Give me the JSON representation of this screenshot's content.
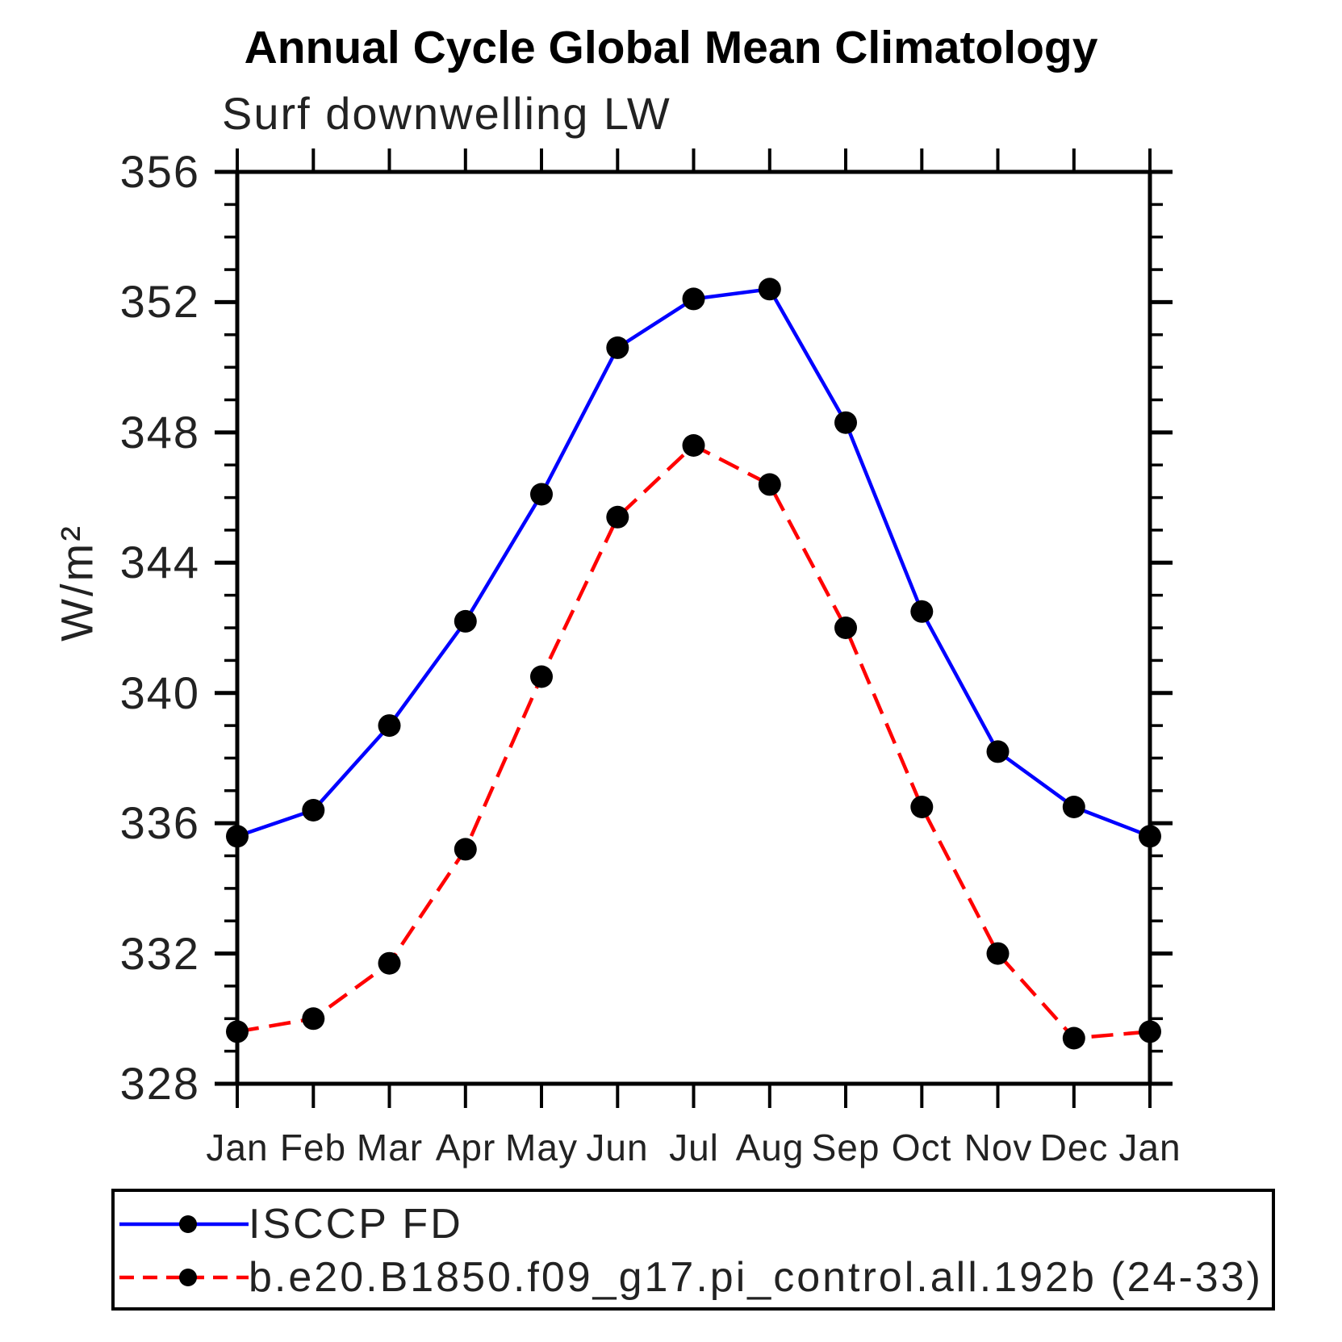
{
  "chart_data": {
    "type": "line",
    "title": "Annual Cycle Global Mean Climatology",
    "subtitle": "Surf downwelling LW",
    "xlabel": "",
    "ylabel": "W/m²",
    "categories": [
      "Jan",
      "Feb",
      "Mar",
      "Apr",
      "May",
      "Jun",
      "Jul",
      "Aug",
      "Sep",
      "Oct",
      "Nov",
      "Dec",
      "Jan"
    ],
    "ylim": [
      328,
      356
    ],
    "y_ticks": [
      328,
      332,
      336,
      340,
      344,
      348,
      352,
      356
    ],
    "y_minor_step": 1,
    "grid": false,
    "legend_position": "bottom",
    "frame_color": "#000000",
    "series": [
      {
        "name": "ISCCP FD",
        "color": "#0000ff",
        "line_style": "solid",
        "marker": "circle",
        "marker_color": "#000000",
        "values": [
          335.6,
          336.4,
          339.0,
          342.2,
          346.1,
          350.6,
          352.1,
          352.4,
          348.3,
          342.5,
          338.2,
          336.5,
          335.6
        ]
      },
      {
        "name": "b.e20.B1850.f09_g17.pi_control.all.192b (24-33)",
        "color": "#ff0000",
        "line_style": "dashed",
        "marker": "circle",
        "marker_color": "#000000",
        "values": [
          329.6,
          330.0,
          331.7,
          335.2,
          340.5,
          345.4,
          347.6,
          346.4,
          342.0,
          336.5,
          332.0,
          329.4,
          329.6
        ]
      }
    ]
  }
}
